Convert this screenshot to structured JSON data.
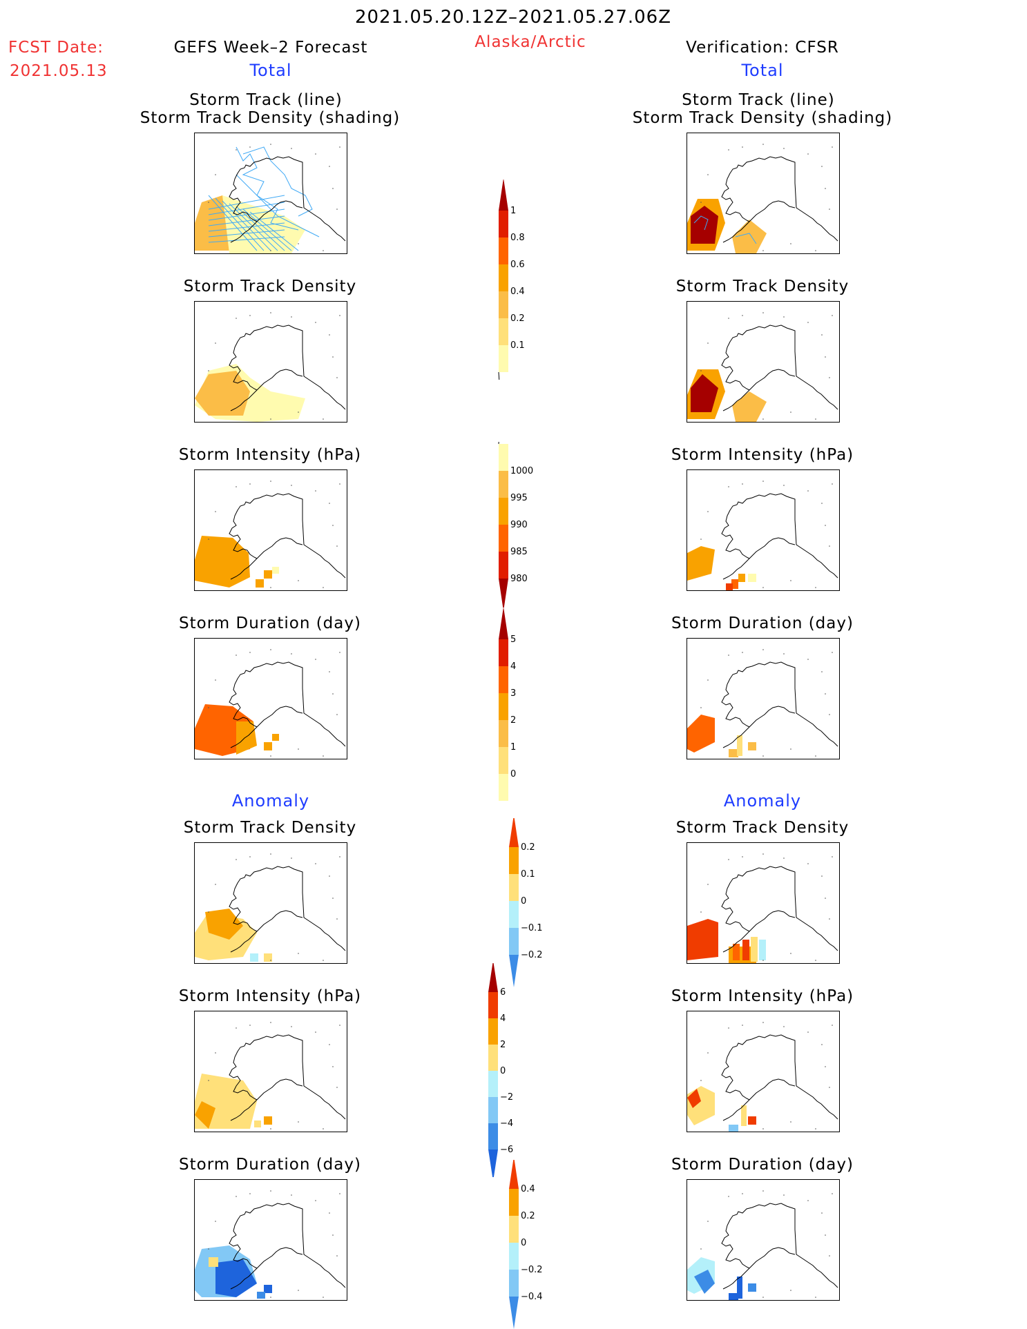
{
  "header": {
    "date_range": "2021.05.20.12Z–2021.05.27.06Z",
    "region": "Alaska/Arctic",
    "fcst_label": "FCST Date:",
    "fcst_date": "2021.05.13",
    "left_title": "GEFS Week–2 Forecast",
    "right_title": "Verification: CFSR",
    "total_label": "Total",
    "anomaly_label": "Anomaly"
  },
  "panel_titles": {
    "track_line": "Storm Track (line)",
    "track_shading": "Storm Track Density (shading)",
    "density": "Storm Track Density",
    "intensity": "Storm Intensity (hPa)",
    "duration": "Storm Duration (day)"
  },
  "colors": {
    "title_red": "#f03232",
    "title_blue": "#1e3cff",
    "track_line": "#3fa9f5"
  },
  "chart_data": [
    {
      "type": "heatmap",
      "name": "colorbar_total_density",
      "levels": [
        "0.1",
        "0.2",
        "0.4",
        "0.6",
        "0.8",
        "1"
      ],
      "colors": [
        "#fffbaf",
        "#ffe07a",
        "#fbbd47",
        "#f9a200",
        "#ff6400",
        "#e11e00",
        "#a50000"
      ]
    },
    {
      "type": "heatmap",
      "name": "colorbar_total_intensity",
      "levels": [
        "1000",
        "995",
        "990",
        "985",
        "980"
      ],
      "colors": [
        "#fffbaf",
        "#fbbd47",
        "#f9a200",
        "#ff6400",
        "#e11e00",
        "#a50000"
      ]
    },
    {
      "type": "heatmap",
      "name": "colorbar_total_duration",
      "levels": [
        "5",
        "4",
        "3",
        "2",
        "1",
        "0"
      ],
      "colors": [
        "#a50000",
        "#e11e00",
        "#ff6400",
        "#f9a200",
        "#fbbd47",
        "#ffe07a",
        "#fffbaf"
      ]
    },
    {
      "type": "heatmap",
      "name": "colorbar_anom_density",
      "levels": [
        "0.2",
        "0.1",
        "0",
        "−0.1",
        "−0.2"
      ],
      "colors": [
        "#f03c00",
        "#f9a200",
        "#ffe07a",
        "#b4f0fa",
        "#82c8f5",
        "#3c8ce6",
        "#1e64dc"
      ]
    },
    {
      "type": "heatmap",
      "name": "colorbar_anom_intensity",
      "levels": [
        "6",
        "4",
        "2",
        "0",
        "−2",
        "−4",
        "−6"
      ],
      "colors": [
        "#a50000",
        "#f03c00",
        "#f9a200",
        "#ffe07a",
        "#b4f0fa",
        "#82c8f5",
        "#3c8ce6",
        "#1e64dc"
      ]
    },
    {
      "type": "heatmap",
      "name": "colorbar_anom_duration",
      "levels": [
        "0.4",
        "0.2",
        "0",
        "−0.2",
        "−0.4"
      ],
      "colors": [
        "#f03c00",
        "#f9a200",
        "#ffe07a",
        "#b4f0fa",
        "#82c8f5",
        "#3c8ce6",
        "#1e64dc"
      ]
    }
  ]
}
